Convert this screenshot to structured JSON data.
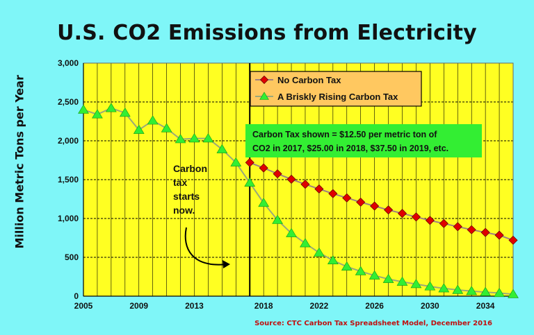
{
  "chart_data": {
    "type": "line",
    "title": "U.S. CO2 Emissions from Electricity",
    "ylabel": "Million Metric Tons per Year",
    "xlabel": "",
    "xlim": [
      2005,
      2036
    ],
    "ylim": [
      0,
      3000
    ],
    "yticks": [
      0,
      500,
      1000,
      1500,
      2000,
      2500,
      3000
    ],
    "ytick_labels": [
      "0",
      "500",
      "1,000",
      "1,500",
      "2,000",
      "2,500",
      "3,000"
    ],
    "xticks": [
      2005,
      2009,
      2013,
      2018,
      2022,
      2026,
      2030,
      2034
    ],
    "xtick_labels": [
      "2005",
      "2009",
      "2013",
      "2018",
      "2022",
      "2026",
      "2030",
      "2034"
    ],
    "grid": true,
    "legend_position": "top-right",
    "vline_x": 2017,
    "series": [
      {
        "name": "No Carbon Tax",
        "color": "#e00000",
        "marker": "diamond",
        "x": [
          2017,
          2018,
          2019,
          2020,
          2021,
          2022,
          2023,
          2024,
          2025,
          2026,
          2027,
          2028,
          2029,
          2030,
          2031,
          2032,
          2033,
          2034,
          2035,
          2036
        ],
        "values": [
          1720,
          1650,
          1575,
          1505,
          1440,
          1380,
          1320,
          1265,
          1210,
          1160,
          1110,
          1065,
          1020,
          975,
          935,
          895,
          855,
          820,
          785,
          720
        ]
      },
      {
        "name": "A Briskly Rising Carbon Tax",
        "color": "#33ee33",
        "marker": "triangle",
        "x": [
          2005,
          2006,
          2007,
          2008,
          2009,
          2010,
          2011,
          2012,
          2013,
          2014,
          2015,
          2016,
          2017,
          2018,
          2019,
          2020,
          2021,
          2022,
          2023,
          2024,
          2025,
          2026,
          2027,
          2028,
          2029,
          2030,
          2031,
          2032,
          2033,
          2034,
          2035,
          2036
        ],
        "values": [
          2400,
          2340,
          2420,
          2360,
          2140,
          2260,
          2160,
          2020,
          2030,
          2030,
          1890,
          1720,
          1460,
          1200,
          980,
          810,
          680,
          560,
          460,
          380,
          320,
          265,
          220,
          185,
          155,
          125,
          100,
          80,
          65,
          52,
          40,
          25
        ]
      }
    ],
    "annotations": [
      "Carbon Tax shown = $12.50 per metric ton of",
      "CO2 in 2017, $25.00 in 2018, $37.50 in 2019, etc.",
      "Carbon",
      "tax",
      "starts",
      "now."
    ],
    "source": "Source: CTC Carbon Tax Spreadsheet Model, December 2016",
    "colors": {
      "background": "#7ff6f8",
      "plot_area": "#ffff22",
      "legend_box": "#ffc860",
      "note_box": "#33ee33"
    }
  }
}
